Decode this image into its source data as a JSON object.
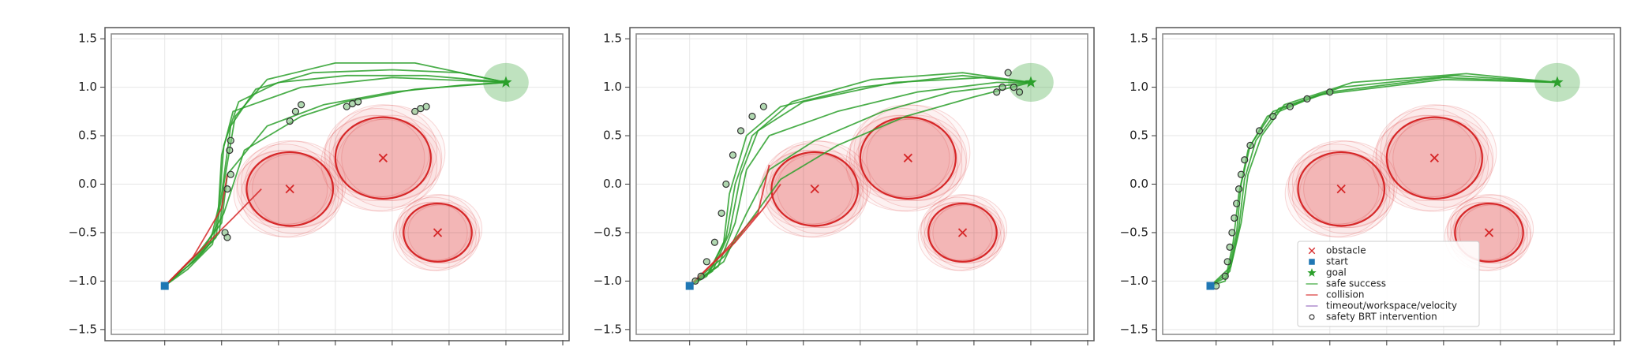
{
  "chart_data": [
    {
      "type": "line",
      "xlim": [
        -1.47,
        2.5
      ],
      "ylim": [
        -1.55,
        1.55
      ],
      "xticks": [
        -1.0,
        -0.5,
        0.0,
        0.5,
        1.0,
        1.5,
        2.0,
        2.5
      ],
      "yticks": [
        1.5,
        1.0,
        0.5,
        0.0,
        -0.5,
        -1.0,
        -1.5
      ],
      "grid": true,
      "yticklabels": [
        "1.5",
        "1.0",
        "0.5",
        "0.0",
        "−0.5",
        "−1.0",
        "−1.5"
      ],
      "obstacles": {
        "color": "#d62728",
        "x": [
          0.1,
          0.92,
          1.4
        ],
        "y": [
          -0.05,
          0.27,
          -0.5
        ],
        "radius": [
          0.38,
          0.42,
          0.3
        ]
      },
      "start": {
        "color": "#1f77b4",
        "x": -1.0,
        "y": -1.05
      },
      "goal": {
        "color": "#2ca02c",
        "x": 2.0,
        "y": 1.05,
        "radius": 0.2
      },
      "series": [
        {
          "color": "#2ca02c",
          "x": [
            -1,
            -0.8,
            -0.6,
            -0.52,
            -0.48,
            -0.35,
            0,
            0.6,
            1.3,
            2.0
          ],
          "values": [
            -1.05,
            -0.85,
            -0.6,
            -0.2,
            0.4,
            0.85,
            1.05,
            1.12,
            1.12,
            1.05
          ]
        },
        {
          "color": "#2ca02c",
          "x": [
            -1,
            -0.75,
            -0.55,
            -0.5,
            -0.42,
            -0.2,
            0.3,
            1.0,
            1.6,
            2.0
          ],
          "values": [
            -1.05,
            -0.8,
            -0.55,
            -0.1,
            0.6,
            0.98,
            1.15,
            1.18,
            1.15,
            1.05
          ]
        },
        {
          "color": "#2ca02c",
          "x": [
            -1,
            -0.7,
            -0.52,
            -0.48,
            -0.38,
            -0.1,
            0.5,
            1.2,
            2.0
          ],
          "values": [
            -1.05,
            -0.75,
            -0.5,
            0.0,
            0.7,
            1.08,
            1.25,
            1.25,
            1.05
          ]
        },
        {
          "color": "#2ca02c",
          "x": [
            -1,
            -0.7,
            -0.5,
            -0.45,
            -0.1,
            0.4,
            1.0,
            1.6,
            2.0
          ],
          "values": [
            -1.05,
            -0.7,
            -0.4,
            0.1,
            0.6,
            0.82,
            0.95,
            1.02,
            1.05
          ]
        },
        {
          "color": "#2ca02c",
          "x": [
            -1,
            -0.65,
            -0.48,
            -0.3,
            0.2,
            0.6,
            1.2,
            2.0
          ],
          "values": [
            -1.05,
            -0.65,
            -0.3,
            0.35,
            0.7,
            0.85,
            0.98,
            1.05
          ]
        },
        {
          "color": "#2ca02c",
          "x": [
            -1,
            -0.8,
            -0.58,
            -0.53,
            -0.5,
            -0.4,
            0.2,
            1.0,
            2.0
          ],
          "values": [
            -1.05,
            -0.88,
            -0.62,
            -0.3,
            0.3,
            0.75,
            1.0,
            1.1,
            1.05
          ]
        },
        {
          "color": "#d62728",
          "x": [
            -1,
            -0.7,
            -0.4,
            -0.15
          ],
          "values": [
            -1.05,
            -0.7,
            -0.35,
            -0.05
          ]
        },
        {
          "color": "#d62728",
          "x": [
            -1,
            -0.75,
            -0.5,
            -0.45
          ],
          "values": [
            -1.05,
            -0.75,
            -0.25,
            0.1
          ]
        }
      ],
      "interventions": {
        "x": [
          -0.47,
          -0.45,
          -0.43,
          -0.42,
          0.1,
          0.15,
          0.2,
          0.6,
          0.65,
          0.7,
          1.2,
          1.25,
          1.3,
          -0.45,
          -0.42
        ],
        "y": [
          -0.5,
          -0.55,
          0.35,
          0.45,
          0.65,
          0.75,
          0.82,
          0.8,
          0.83,
          0.85,
          0.75,
          0.78,
          0.8,
          -0.05,
          0.1
        ]
      }
    },
    {
      "type": "line",
      "xlim": [
        -1.47,
        2.5
      ],
      "ylim": [
        -1.55,
        1.55
      ],
      "xticks": [
        -1.0,
        -0.5,
        0.0,
        0.5,
        1.0,
        1.5,
        2.0,
        2.5
      ],
      "yticks": [
        1.5,
        1.0,
        0.5,
        0.0,
        -0.5,
        -1.0,
        -1.5
      ],
      "grid": true,
      "yticklabels": [
        "1.5",
        "1.0",
        "0.5",
        "0.0",
        "−0.5",
        "−1.0",
        "−1.5"
      ],
      "obstacles": {
        "color": "#d62728",
        "x": [
          0.1,
          0.92,
          1.4
        ],
        "y": [
          -0.05,
          0.27,
          -0.5
        ],
        "radius": [
          0.38,
          0.42,
          0.3
        ]
      },
      "start": {
        "color": "#1f77b4",
        "x": -1.0,
        "y": -1.05
      },
      "goal": {
        "color": "#2ca02c",
        "x": 2.0,
        "y": 1.05,
        "radius": 0.2
      },
      "series": [
        {
          "color": "#2ca02c",
          "x": [
            -1,
            -0.8,
            -0.65,
            -0.55,
            -0.4,
            0,
            0.8,
            1.6,
            2.0
          ],
          "values": [
            -1.05,
            -0.9,
            -0.5,
            0.1,
            0.55,
            0.85,
            1.05,
            1.1,
            1.05
          ]
        },
        {
          "color": "#2ca02c",
          "x": [
            -1,
            -0.75,
            -0.6,
            -0.5,
            -0.3,
            0.3,
            1.0,
            1.7,
            2.0
          ],
          "values": [
            -1.05,
            -0.85,
            -0.4,
            0.15,
            0.5,
            0.75,
            0.95,
            1.05,
            1.05
          ]
        },
        {
          "color": "#2ca02c",
          "x": [
            -1,
            -0.7,
            -0.5,
            -0.3,
            0.1,
            0.7,
            1.3,
            2.0
          ],
          "values": [
            -1.05,
            -0.8,
            -0.3,
            0.15,
            0.45,
            0.75,
            0.95,
            1.05
          ]
        },
        {
          "color": "#2ca02c",
          "x": [
            -1,
            -0.82,
            -0.68,
            -0.6,
            -0.45,
            -0.1,
            0.6,
            1.4,
            2.0
          ],
          "values": [
            -1.05,
            -0.9,
            -0.55,
            0.0,
            0.5,
            0.85,
            1.08,
            1.15,
            1.05
          ]
        },
        {
          "color": "#2ca02c",
          "x": [
            -1,
            -0.7,
            -0.45,
            -0.2,
            0.3,
            0.9,
            1.5,
            2.0
          ],
          "values": [
            -1.05,
            -0.75,
            -0.35,
            0.05,
            0.4,
            0.7,
            0.9,
            1.05
          ]
        },
        {
          "color": "#2ca02c",
          "x": [
            -1,
            -0.85,
            -0.7,
            -0.65,
            -0.5,
            -0.2,
            0.5,
            1.4,
            2.0
          ],
          "values": [
            -1.05,
            -0.95,
            -0.6,
            -0.1,
            0.5,
            0.8,
            1.0,
            1.12,
            1.05
          ]
        },
        {
          "color": "#d62728",
          "x": [
            -1,
            -0.7,
            -0.4,
            -0.3
          ],
          "values": [
            -1.05,
            -0.7,
            -0.3,
            0.2
          ]
        },
        {
          "color": "#d62728",
          "x": [
            -1,
            -0.6,
            -0.35,
            -0.2
          ],
          "values": [
            -1.05,
            -0.6,
            -0.25,
            0.0
          ]
        }
      ],
      "interventions": {
        "x": [
          -0.95,
          -0.9,
          -0.85,
          -0.78,
          -0.72,
          -0.68,
          -0.62,
          -0.55,
          -0.45,
          -0.35,
          1.7,
          1.75,
          1.8,
          1.85,
          1.9
        ],
        "y": [
          -1.0,
          -0.95,
          -0.8,
          -0.6,
          -0.3,
          0.0,
          0.3,
          0.55,
          0.7,
          0.8,
          0.95,
          1.0,
          1.15,
          1.0,
          0.95
        ]
      }
    },
    {
      "type": "line",
      "xlim": [
        -1.47,
        2.5
      ],
      "ylim": [
        -1.55,
        1.55
      ],
      "xticks": [
        -1.0,
        -0.5,
        0.0,
        0.5,
        1.0,
        1.5,
        2.0,
        2.5
      ],
      "yticks": [
        1.5,
        1.0,
        0.5,
        0.0,
        -0.5,
        -1.0,
        -1.5
      ],
      "grid": true,
      "yticklabels": [
        "1.5",
        "1.0",
        "0.5",
        "0.0",
        "−0.5",
        "−1.0",
        "−1.5"
      ],
      "obstacles": {
        "color": "#d62728",
        "x": [
          0.1,
          0.92,
          1.4
        ],
        "y": [
          -0.05,
          0.27,
          -0.5
        ],
        "radius": [
          0.38,
          0.42,
          0.3
        ]
      },
      "start": {
        "color": "#1f77b4",
        "x": -1.05,
        "y": -1.05
      },
      "goal": {
        "color": "#2ca02c",
        "x": 2.0,
        "y": 1.05,
        "radius": 0.2
      },
      "series": [
        {
          "color": "#2ca02c",
          "x": [
            -1.05,
            -0.9,
            -0.82,
            -0.78,
            -0.7,
            -0.5,
            0,
            1.0,
            2.0
          ],
          "values": [
            -1.05,
            -0.95,
            -0.5,
            0.0,
            0.4,
            0.75,
            0.95,
            1.1,
            1.05
          ]
        },
        {
          "color": "#2ca02c",
          "x": [
            -1.05,
            -0.88,
            -0.8,
            -0.75,
            -0.65,
            -0.45,
            0.1,
            1.1,
            2.0
          ],
          "values": [
            -1.05,
            -0.9,
            -0.45,
            0.05,
            0.45,
            0.78,
            1.0,
            1.12,
            1.05
          ]
        },
        {
          "color": "#2ca02c",
          "x": [
            -1.05,
            -0.92,
            -0.85,
            -0.8,
            -0.72,
            -0.55,
            -0.1,
            1.0,
            2.0
          ],
          "values": [
            -1.05,
            -1.0,
            -0.6,
            -0.1,
            0.35,
            0.7,
            0.92,
            1.08,
            1.05
          ]
        },
        {
          "color": "#2ca02c",
          "x": [
            -1.05,
            -0.87,
            -0.78,
            -0.72,
            -0.6,
            -0.4,
            0.2,
            1.2,
            2.0
          ],
          "values": [
            -1.05,
            -0.85,
            -0.4,
            0.1,
            0.5,
            0.82,
            1.05,
            1.14,
            1.05
          ]
        }
      ],
      "interventions": {
        "x": [
          -1.0,
          -0.92,
          -0.9,
          -0.88,
          -0.86,
          -0.84,
          -0.82,
          -0.8,
          -0.78,
          -0.75,
          -0.7,
          -0.62,
          -0.5,
          -0.35,
          -0.2,
          0.0
        ],
        "y": [
          -1.05,
          -0.95,
          -0.8,
          -0.65,
          -0.5,
          -0.35,
          -0.2,
          -0.05,
          0.1,
          0.25,
          0.4,
          0.55,
          0.7,
          0.8,
          0.88,
          0.95
        ]
      },
      "legend": {
        "loc": "lower center",
        "entries": [
          {
            "label": "obstacle",
            "marker": "x",
            "color": "#d62728"
          },
          {
            "label": "start",
            "marker": "square",
            "color": "#1f77b4"
          },
          {
            "label": "goal",
            "marker": "star",
            "color": "#2ca02c"
          },
          {
            "label": "safe success",
            "marker": "line",
            "color": "#2ca02c"
          },
          {
            "label": "collision",
            "marker": "line",
            "color": "#d62728"
          },
          {
            "label": "timeout/workspace/velocity",
            "marker": "line",
            "color": "#9467bd"
          },
          {
            "label": "safety BRT intervention",
            "marker": "circle",
            "color": "#000000"
          }
        ]
      }
    }
  ]
}
